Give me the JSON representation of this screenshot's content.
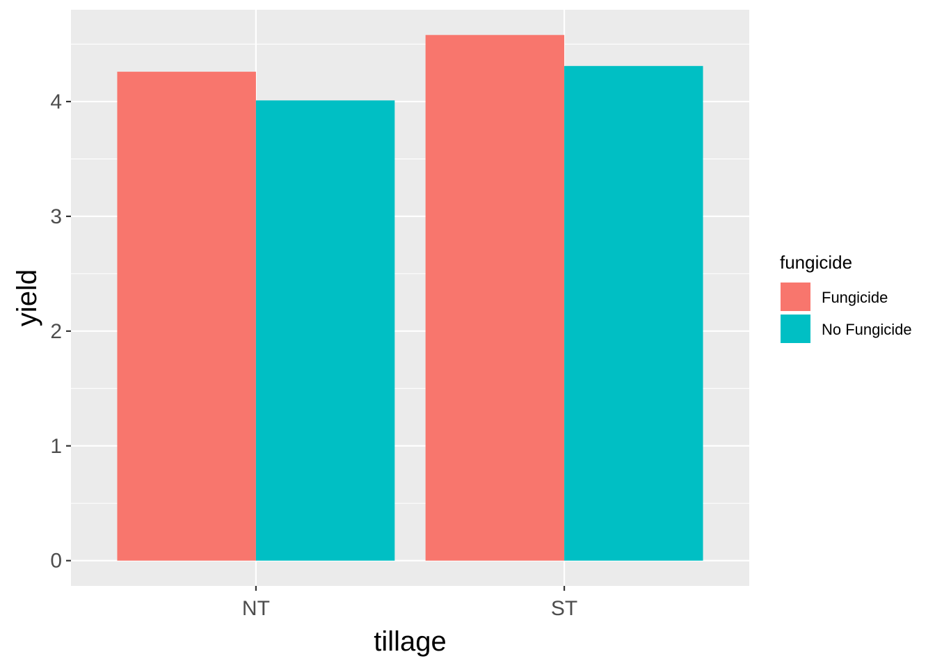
{
  "chart_data": {
    "type": "bar",
    "categories": [
      "NT",
      "ST"
    ],
    "series": [
      {
        "name": "Fungicide",
        "values": [
          4.26,
          4.58
        ],
        "color": "#F8766D"
      },
      {
        "name": "No Fungicide",
        "values": [
          4.01,
          4.31
        ],
        "color": "#00BFC4"
      }
    ],
    "xlabel": "tillage",
    "ylabel": "yield",
    "ylim": [
      -0.22,
      4.8
    ],
    "yticks": [
      "0",
      "1",
      "2",
      "3",
      "4"
    ],
    "legend_title": "fungicide",
    "legend_position": "right",
    "grid": true,
    "panel_background": "#EBEBEB",
    "grid_color": "#FFFFFF"
  }
}
